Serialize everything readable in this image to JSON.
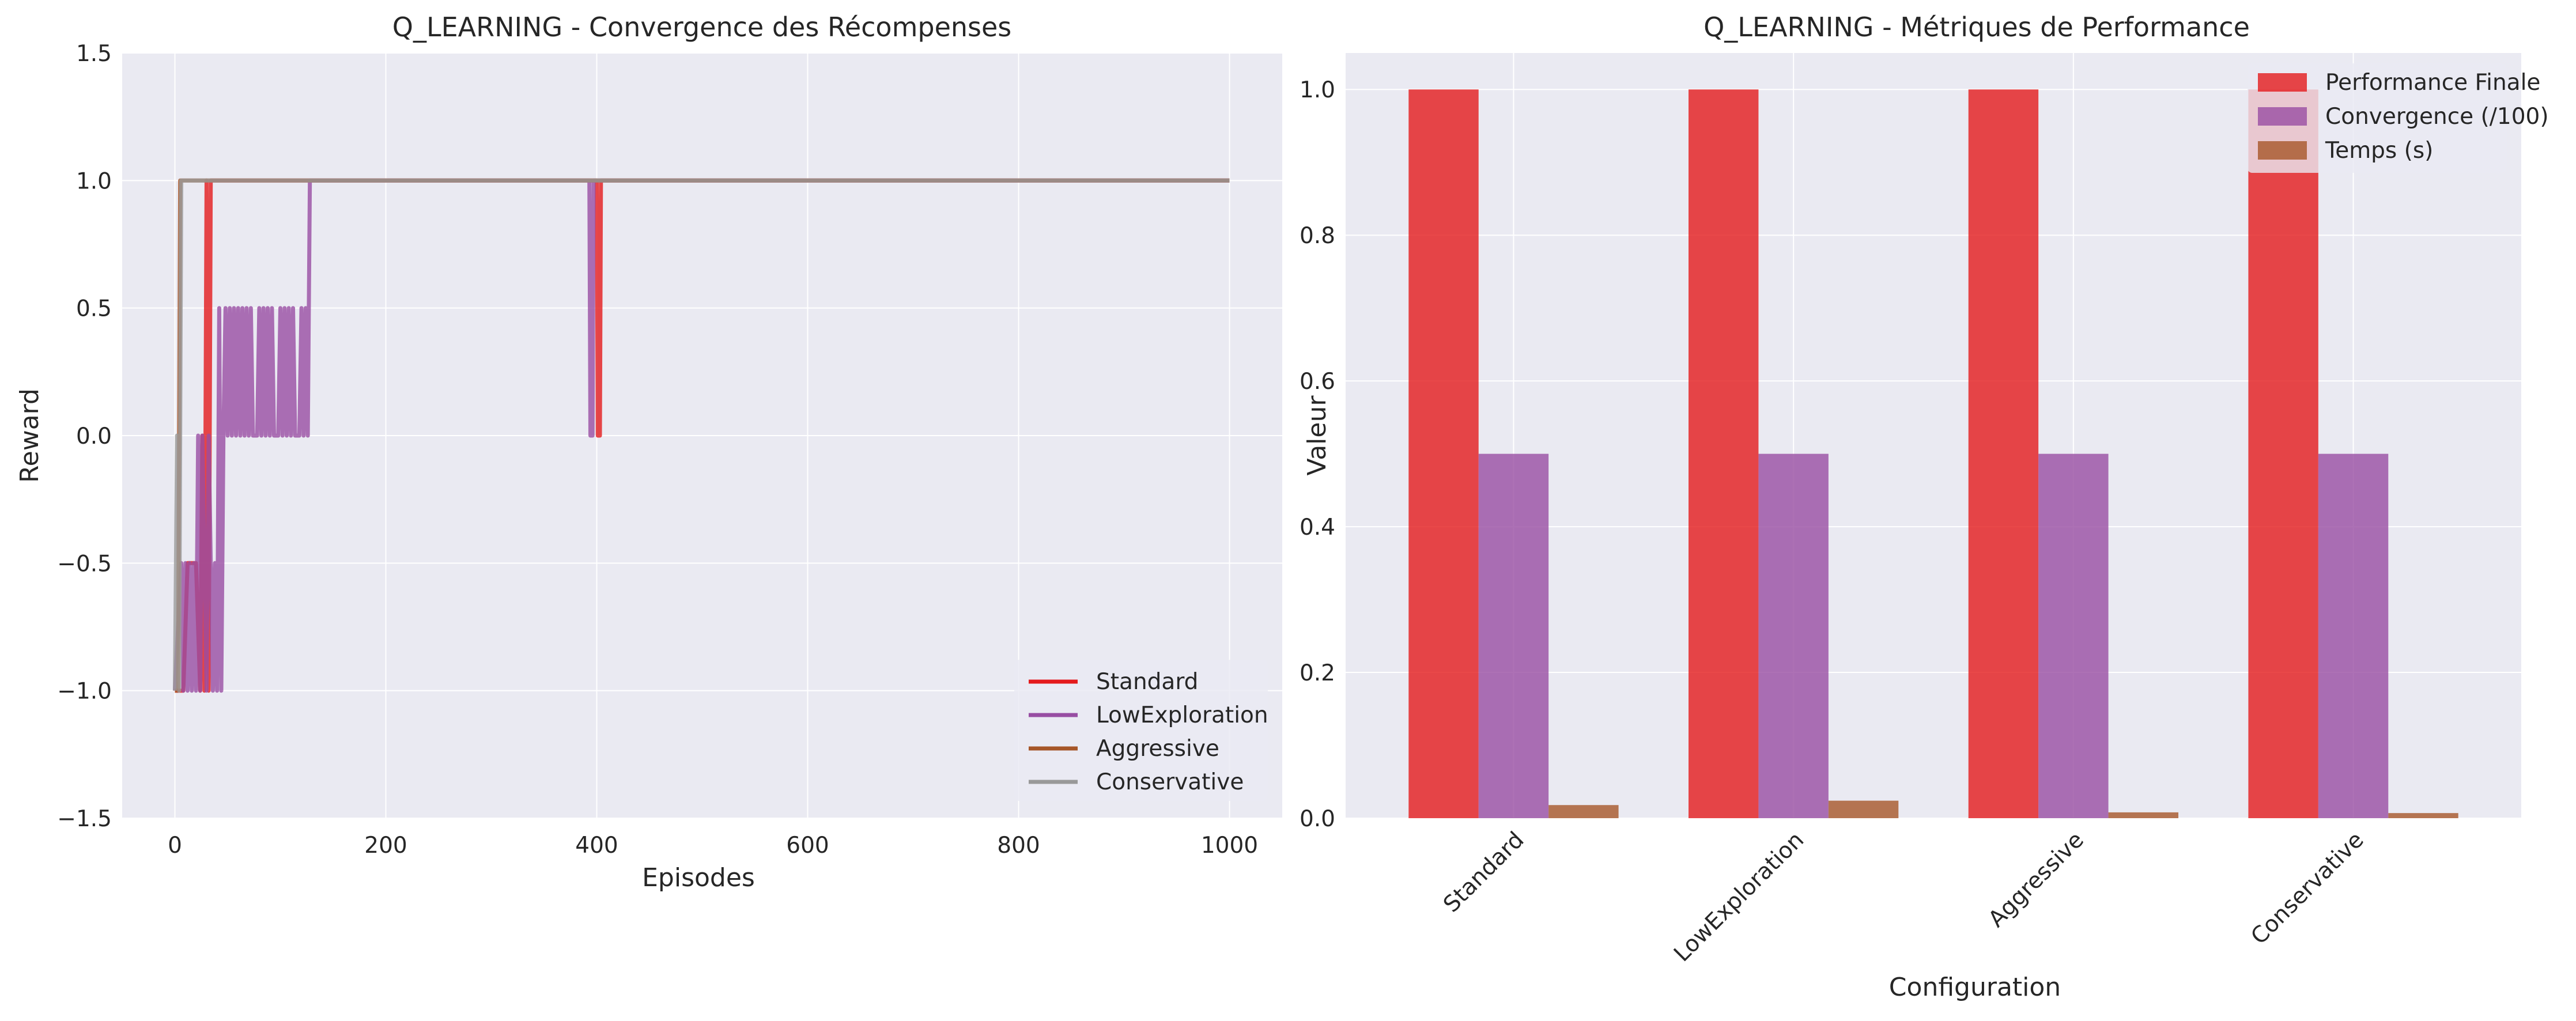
{
  "chart_data": [
    {
      "type": "line",
      "title": "Q_LEARNING - Convergence des Récompenses",
      "xlabel": "Episodes",
      "ylabel": "Reward",
      "xlim": [
        -50,
        1050
      ],
      "ylim": [
        -1.5,
        1.5
      ],
      "xticks": [
        0,
        200,
        400,
        600,
        800,
        1000
      ],
      "xtick_labels": [
        "0",
        "200",
        "400",
        "600",
        "800",
        "1000"
      ],
      "yticks": [
        -1.5,
        -1.0,
        -0.5,
        0.0,
        0.5,
        1.0,
        1.5
      ],
      "ytick_labels": [
        "−1.5",
        "−1.0",
        "−0.5",
        "0.0",
        "0.5",
        "1.0",
        "1.5"
      ],
      "grid": true,
      "legend_position": "lower-right",
      "series": [
        {
          "name": "Standard",
          "color": "#e41a1c",
          "points": [
            [
              0,
              -1.0
            ],
            [
              8,
              -1.0
            ],
            [
              12,
              -0.5
            ],
            [
              20,
              -0.5
            ],
            [
              24,
              -1.0
            ],
            [
              26,
              0.0
            ],
            [
              28,
              -1.0
            ],
            [
              30,
              1.0
            ],
            [
              32,
              -1.0
            ],
            [
              34,
              1.0
            ],
            [
              36,
              1.0
            ],
            [
              400,
              1.0
            ],
            [
              401,
              0.0
            ],
            [
              403,
              0.0
            ],
            [
              404,
              1.0
            ],
            [
              1000,
              1.0
            ]
          ]
        },
        {
          "name": "LowExploration",
          "color": "#984ea3",
          "points": [
            [
              0,
              -1.0
            ],
            [
              6,
              -0.5
            ],
            [
              8,
              -1.0
            ],
            [
              10,
              -0.5
            ],
            [
              12,
              -1.0
            ],
            [
              14,
              -0.5
            ],
            [
              16,
              -1.0
            ],
            [
              18,
              -0.5
            ],
            [
              20,
              -1.0
            ],
            [
              22,
              0.0
            ],
            [
              24,
              -1.0
            ],
            [
              26,
              0.0
            ],
            [
              28,
              -0.5
            ],
            [
              30,
              -1.0
            ],
            [
              32,
              0.0
            ],
            [
              34,
              -0.5
            ],
            [
              36,
              -1.0
            ],
            [
              38,
              -0.5
            ],
            [
              40,
              -1.0
            ],
            [
              42,
              0.5
            ],
            [
              44,
              -1.0
            ],
            [
              46,
              0.0
            ],
            [
              48,
              0.5
            ],
            [
              50,
              0.0
            ],
            [
              52,
              0.5
            ],
            [
              54,
              0.0
            ],
            [
              56,
              0.5
            ],
            [
              58,
              0.0
            ],
            [
              60,
              0.5
            ],
            [
              62,
              0.0
            ],
            [
              64,
              0.5
            ],
            [
              66,
              0.0
            ],
            [
              68,
              0.5
            ],
            [
              70,
              0.0
            ],
            [
              72,
              0.5
            ],
            [
              74,
              0.0
            ],
            [
              78,
              0.0
            ],
            [
              80,
              0.5
            ],
            [
              82,
              0.0
            ],
            [
              84,
              0.5
            ],
            [
              86,
              0.0
            ],
            [
              88,
              0.5
            ],
            [
              90,
              0.0
            ],
            [
              92,
              0.5
            ],
            [
              94,
              0.0
            ],
            [
              98,
              0.0
            ],
            [
              100,
              0.5
            ],
            [
              102,
              0.0
            ],
            [
              104,
              0.5
            ],
            [
              106,
              0.0
            ],
            [
              108,
              0.5
            ],
            [
              110,
              0.0
            ],
            [
              112,
              0.5
            ],
            [
              114,
              0.0
            ],
            [
              118,
              0.0
            ],
            [
              120,
              0.5
            ],
            [
              122,
              0.0
            ],
            [
              124,
              0.5
            ],
            [
              126,
              0.0
            ],
            [
              128,
              1.0
            ],
            [
              393,
              1.0
            ],
            [
              394,
              0.0
            ],
            [
              396,
              0.0
            ],
            [
              397,
              1.0
            ],
            [
              1000,
              1.0
            ]
          ]
        },
        {
          "name": "Aggressive",
          "color": "#a65628",
          "points": [
            [
              0,
              -1.0
            ],
            [
              3,
              -1.0
            ],
            [
              5,
              1.0
            ],
            [
              1000,
              1.0
            ]
          ]
        },
        {
          "name": "Conservative",
          "color": "#999999",
          "points": [
            [
              0,
              -1.0
            ],
            [
              2,
              0.0
            ],
            [
              4,
              -1.0
            ],
            [
              6,
              1.0
            ],
            [
              1000,
              1.0
            ]
          ]
        }
      ]
    },
    {
      "type": "bar",
      "title": "Q_LEARNING - Métriques de Performance",
      "xlabel": "Configuration",
      "ylabel": "Valeur",
      "ylim": [
        0,
        1.05
      ],
      "yticks": [
        0.0,
        0.2,
        0.4,
        0.6,
        0.8,
        1.0
      ],
      "ytick_labels": [
        "0.0",
        "0.2",
        "0.4",
        "0.6",
        "0.8",
        "1.0"
      ],
      "grid": true,
      "legend_position": "top-right",
      "categories": [
        "Standard",
        "LowExploration",
        "Aggressive",
        "Conservative"
      ],
      "series": [
        {
          "name": "Performance Finale",
          "color": "#e41a1c",
          "values": [
            1.0,
            1.0,
            1.0,
            1.0
          ]
        },
        {
          "name": "Convergence (/100)",
          "color": "#984ea3",
          "values": [
            0.5,
            0.5,
            0.5,
            0.5
          ]
        },
        {
          "name": "Temps (s)",
          "color": "#a65628",
          "values": [
            0.018,
            0.024,
            0.008,
            0.007
          ]
        }
      ]
    }
  ]
}
